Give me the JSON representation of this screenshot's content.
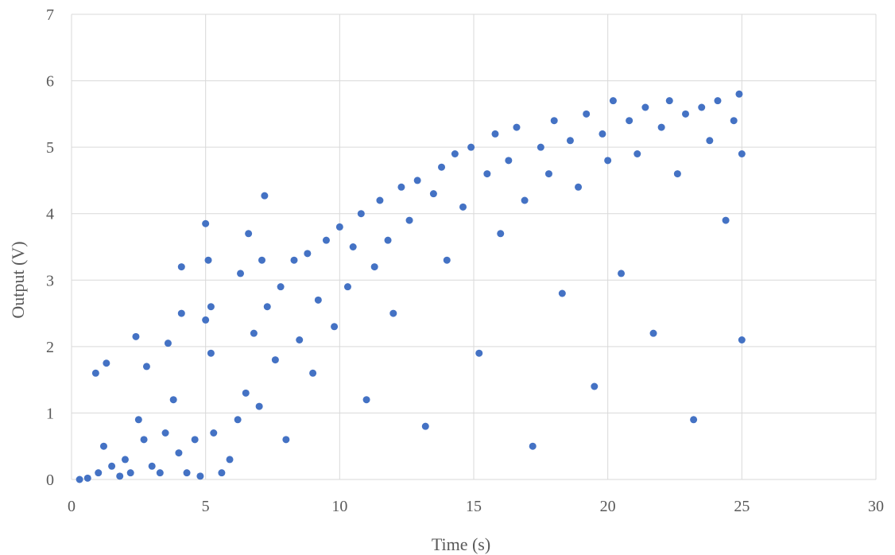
{
  "chart_data": {
    "type": "scatter",
    "title": "",
    "xlabel": "Time (s)",
    "ylabel": "Output (V)",
    "xlim": [
      0,
      30
    ],
    "ylim": [
      0,
      7
    ],
    "x_ticks": [
      "0",
      "5",
      "10",
      "15",
      "20",
      "25",
      "30"
    ],
    "y_ticks": [
      "0",
      "1",
      "2",
      "3",
      "4",
      "5",
      "6",
      "7"
    ],
    "grid": true,
    "legend": "none",
    "marker_color": "#4472C4",
    "series": [
      {
        "points": [
          [
            0.9,
            1.6
          ],
          [
            1.3,
            1.75
          ],
          [
            2.4,
            2.15
          ],
          [
            2.8,
            1.7
          ],
          [
            3.6,
            2.05
          ],
          [
            4.1,
            3.2
          ],
          [
            4.1,
            2.5
          ],
          [
            5.0,
            3.85
          ],
          [
            5.1,
            3.3
          ],
          [
            5.2,
            2.6
          ],
          [
            5.0,
            2.4
          ],
          [
            5.2,
            1.9
          ],
          [
            6.3,
            3.1
          ],
          [
            6.6,
            3.7
          ],
          [
            7.2,
            4.27
          ],
          [
            7.1,
            3.3
          ],
          [
            0.3,
            0.0
          ],
          [
            0.6,
            0.02
          ],
          [
            1.0,
            0.1
          ],
          [
            1.2,
            0.5
          ],
          [
            1.5,
            0.2
          ],
          [
            1.8,
            0.05
          ],
          [
            2.0,
            0.3
          ],
          [
            2.2,
            0.1
          ],
          [
            2.5,
            0.9
          ],
          [
            2.7,
            0.6
          ],
          [
            3.0,
            0.2
          ],
          [
            3.3,
            0.1
          ],
          [
            3.5,
            0.7
          ],
          [
            3.8,
            1.2
          ],
          [
            4.0,
            0.4
          ],
          [
            4.3,
            0.1
          ],
          [
            4.6,
            0.6
          ],
          [
            4.8,
            0.05
          ],
          [
            5.3,
            0.7
          ],
          [
            5.6,
            0.1
          ],
          [
            5.9,
            0.3
          ],
          [
            6.2,
            0.9
          ],
          [
            6.5,
            1.3
          ],
          [
            6.8,
            2.2
          ],
          [
            7.0,
            1.1
          ],
          [
            7.3,
            2.6
          ],
          [
            7.6,
            1.8
          ],
          [
            7.8,
            2.9
          ],
          [
            8.0,
            0.6
          ],
          [
            8.3,
            3.3
          ],
          [
            8.5,
            2.1
          ],
          [
            8.8,
            3.4
          ],
          [
            9.0,
            1.6
          ],
          [
            9.2,
            2.7
          ],
          [
            9.5,
            3.6
          ],
          [
            9.8,
            2.3
          ],
          [
            10.0,
            3.8
          ],
          [
            10.3,
            2.9
          ],
          [
            10.5,
            3.5
          ],
          [
            10.8,
            4.0
          ],
          [
            11.0,
            1.2
          ],
          [
            11.3,
            3.2
          ],
          [
            11.5,
            4.2
          ],
          [
            11.8,
            3.6
          ],
          [
            12.0,
            2.5
          ],
          [
            12.3,
            4.4
          ],
          [
            12.6,
            3.9
          ],
          [
            12.9,
            4.5
          ],
          [
            13.2,
            0.8
          ],
          [
            13.5,
            4.3
          ],
          [
            13.8,
            4.7
          ],
          [
            14.0,
            3.3
          ],
          [
            14.3,
            4.9
          ],
          [
            14.6,
            4.1
          ],
          [
            14.9,
            5.0
          ],
          [
            15.2,
            1.9
          ],
          [
            15.5,
            4.6
          ],
          [
            15.8,
            5.2
          ],
          [
            16.0,
            3.7
          ],
          [
            16.3,
            4.8
          ],
          [
            16.6,
            5.3
          ],
          [
            16.9,
            4.2
          ],
          [
            17.2,
            0.5
          ],
          [
            17.5,
            5.0
          ],
          [
            17.8,
            4.6
          ],
          [
            18.0,
            5.4
          ],
          [
            18.3,
            2.8
          ],
          [
            18.6,
            5.1
          ],
          [
            18.9,
            4.4
          ],
          [
            19.2,
            5.5
          ],
          [
            19.5,
            1.4
          ],
          [
            19.8,
            5.2
          ],
          [
            20.0,
            4.8
          ],
          [
            20.2,
            5.7
          ],
          [
            20.5,
            3.1
          ],
          [
            20.8,
            5.4
          ],
          [
            21.1,
            4.9
          ],
          [
            21.4,
            5.6
          ],
          [
            21.7,
            2.2
          ],
          [
            22.0,
            5.3
          ],
          [
            22.3,
            5.7
          ],
          [
            22.6,
            4.6
          ],
          [
            22.9,
            5.5
          ],
          [
            23.2,
            0.9
          ],
          [
            23.5,
            5.6
          ],
          [
            23.8,
            5.1
          ],
          [
            24.1,
            5.7
          ],
          [
            24.4,
            3.9
          ],
          [
            24.7,
            5.4
          ],
          [
            24.9,
            5.8
          ],
          [
            25.0,
            2.1
          ],
          [
            25.0,
            4.9
          ]
        ]
      }
    ]
  }
}
